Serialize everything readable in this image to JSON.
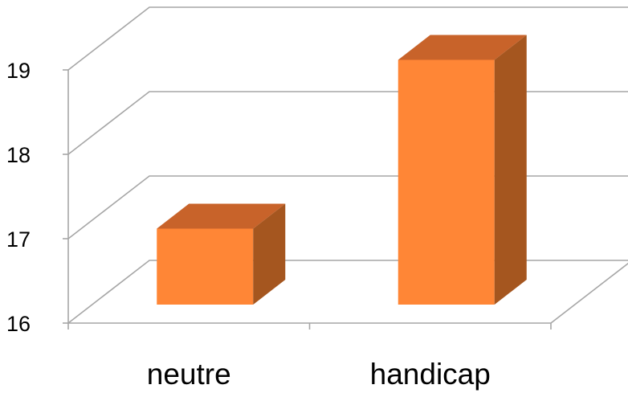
{
  "chart_data": {
    "type": "bar",
    "style": "3d-column",
    "categories": [
      "neutre",
      "handicap"
    ],
    "values": [
      16.9,
      18.9
    ],
    "ylim": [
      16,
      19
    ],
    "yticks": [
      16,
      17,
      18,
      19
    ],
    "ytick_labels": [
      "16",
      "17",
      "18",
      "19"
    ],
    "title": "",
    "xlabel": "",
    "ylabel": "",
    "grid": true,
    "legend": "none",
    "colors": {
      "bar_front": "#FF8636",
      "bar_top": "#C8632A",
      "bar_side": "#A5561F",
      "grid": "#A6A6A6"
    }
  }
}
